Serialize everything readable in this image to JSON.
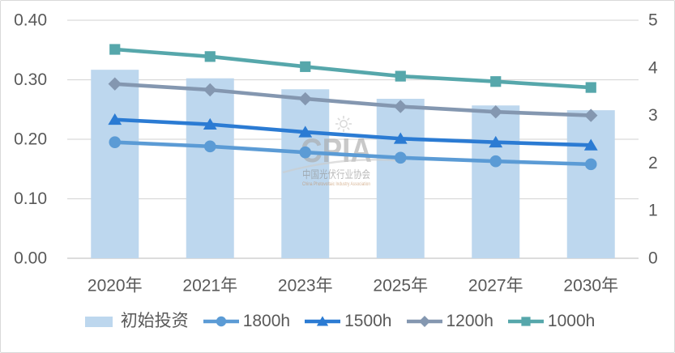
{
  "chart_data": {
    "type": "combo-bar-line",
    "title": "",
    "categories": [
      "2020年",
      "2021年",
      "2023年",
      "2025年",
      "2027年",
      "2030年"
    ],
    "bar_series": {
      "name": "初始投资",
      "axis": "right",
      "color": "#BDD7EE",
      "values": [
        3.96,
        3.78,
        3.55,
        3.35,
        3.21,
        3.11
      ]
    },
    "line_series": [
      {
        "name": "1800h",
        "axis": "left",
        "marker": "circle",
        "color": "#5B9BD5",
        "values": [
          0.195,
          0.188,
          0.178,
          0.169,
          0.163,
          0.158
        ]
      },
      {
        "name": "1500h",
        "axis": "left",
        "marker": "triangle",
        "color": "#2B7BD3",
        "values": [
          0.233,
          0.225,
          0.212,
          0.201,
          0.195,
          0.19
        ]
      },
      {
        "name": "1200h",
        "axis": "left",
        "marker": "diamond",
        "color": "#8497B0",
        "values": [
          0.293,
          0.283,
          0.268,
          0.255,
          0.246,
          0.24
        ]
      },
      {
        "name": "1000h",
        "axis": "left",
        "marker": "square",
        "color": "#56A7AB",
        "values": [
          0.351,
          0.339,
          0.322,
          0.306,
          0.297,
          0.287
        ]
      }
    ],
    "left_axis": {
      "min": 0,
      "max": 0.4,
      "ticks": [
        "0.00",
        "0.10",
        "0.20",
        "0.30",
        "0.40"
      ]
    },
    "right_axis": {
      "min": 0,
      "max": 5,
      "ticks": [
        "0",
        "1",
        "2",
        "3",
        "4",
        "5"
      ]
    },
    "grid": "horizontal gridlines at left-axis ticks",
    "legend_position": "bottom",
    "legend_order": [
      "初始投资",
      "1800h",
      "1500h",
      "1200h",
      "1000h"
    ]
  },
  "watermark": {
    "brand": "CPIA",
    "org_cn": "中国光伏行业协会",
    "org_en": "China Photovoltaic Industry Association"
  },
  "colors": {
    "gridline": "#D9D9D9",
    "axis_line": "#C6C6C6",
    "axis_text": "#595959",
    "frame_border": "#D9D9D9",
    "watermark_gray": "#A9A9A9",
    "watermark_cn": "#8F8F8F",
    "watermark_en": "#C08A5A"
  }
}
